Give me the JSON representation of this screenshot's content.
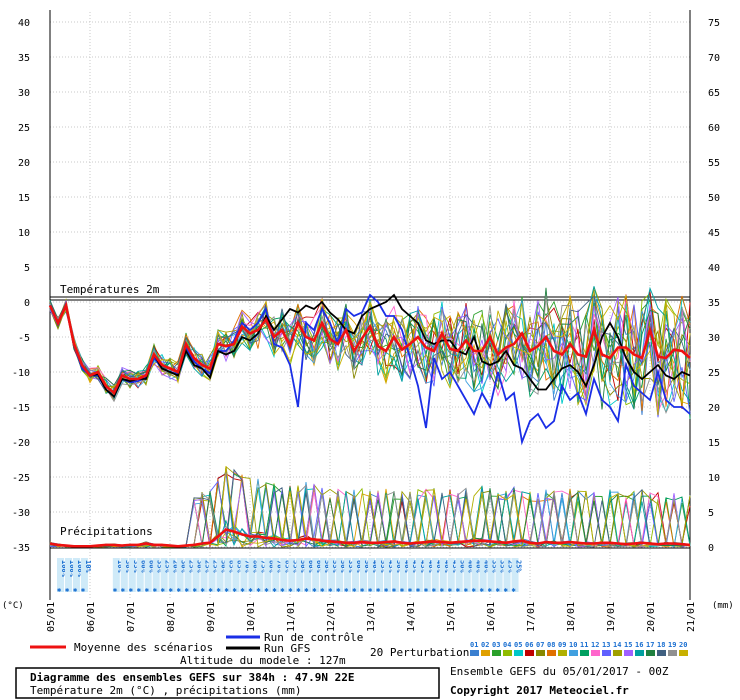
{
  "chart_data": {
    "type": "line",
    "title": "Diagramme des ensembles GEFS sur 384h : 47.9N 22E",
    "subtitle": "Température 2m (°C) , précipitations (mm)",
    "temp_label": "Températures 2m",
    "precip_label": "Précipitations",
    "left_axis_unit": "(°C)",
    "right_axis_unit": "(mm)",
    "left_ticks": [
      "40",
      "35",
      "30",
      "25",
      "20",
      "15",
      "10",
      "5",
      "0",
      "-5",
      "-10",
      "-15",
      "-20",
      "-25",
      "-30",
      "-35"
    ],
    "right_ticks": [
      "75",
      "70",
      "65",
      "60",
      "55",
      "50",
      "45",
      "40",
      "35",
      "30",
      "25",
      "20",
      "15",
      "10",
      "5",
      "0"
    ],
    "ylim_temp": [
      -35,
      40
    ],
    "ylim_precip": [
      0,
      75
    ],
    "date_labels": [
      "05/01",
      "06/01",
      "07/01",
      "08/01",
      "09/01",
      "10/01",
      "11/01",
      "12/01",
      "13/01",
      "14/01",
      "15/01",
      "16/01",
      "17/01",
      "18/01",
      "19/01",
      "20/01",
      "21/01"
    ],
    "x_step_hours": 6,
    "temp_series": [
      {
        "name": "Moyenne des scénarios",
        "color": "#ee1111",
        "values": [
          -0.5,
          -3,
          -0.5,
          -6,
          -9,
          -10.5,
          -10,
          -12,
          -13,
          -10.5,
          -11,
          -11,
          -10.5,
          -7.5,
          -9,
          -9.5,
          -10,
          -6,
          -8,
          -9,
          -9.5,
          -6,
          -6.3,
          -6,
          -3.5,
          -4.5,
          -4,
          -2.5,
          -5,
          -4,
          -6.2,
          -3,
          -5,
          -5.5,
          -3,
          -5.3,
          -6,
          -4,
          -7,
          -5.2,
          -3.5,
          -6.3,
          -7,
          -5,
          -6.8,
          -6,
          -5,
          -6.5,
          -7,
          -4.5,
          -6.7,
          -7,
          -5.5,
          -7,
          -7,
          -5,
          -7.5,
          -6.5,
          -6,
          -4.5,
          -7,
          -6.3,
          -5,
          -7,
          -7.5,
          -6,
          -7.5,
          -7.8,
          -4,
          -7.5,
          -8,
          -6.5,
          -6.5,
          -7.5,
          -8,
          -4,
          -7.8,
          -8,
          -6.8,
          -7,
          -8
        ]
      },
      {
        "name": "Run de contrôle",
        "color": "#1a2ee6",
        "values": [
          -0.5,
          -3.2,
          -0.5,
          -6.2,
          -9.5,
          -10.5,
          -10.5,
          -12.5,
          -13.5,
          -11,
          -11.5,
          -11.3,
          -10.8,
          -8,
          -9.5,
          -10,
          -10.3,
          -6.5,
          -8.5,
          -9.5,
          -10.2,
          -7,
          -7,
          -5.5,
          -3,
          -4,
          -3,
          -1,
          -6,
          -6.5,
          -9,
          -15,
          -3,
          -4,
          -1,
          -3,
          -6,
          -1,
          -2,
          -1.5,
          1,
          0,
          -2,
          -2,
          -4,
          -8,
          -12,
          -18,
          -8,
          -11,
          -10,
          -12,
          -14,
          -16,
          -13,
          -15,
          -10,
          -14,
          -13,
          -20,
          -17,
          -16,
          -18,
          -17,
          -12,
          -14,
          -13,
          -16,
          -11,
          -14,
          -15,
          -17,
          -9,
          -12,
          -13,
          -14,
          -10,
          -14,
          -15,
          -15,
          -16
        ]
      },
      {
        "name": "Run GFS",
        "color": "#000000",
        "values": [
          -0.5,
          -3,
          -0.5,
          -6,
          -9,
          -10.5,
          -10.3,
          -12.5,
          -13.5,
          -11,
          -11.3,
          -11,
          -11,
          -7.5,
          -9.5,
          -10,
          -10.5,
          -7,
          -9,
          -9.5,
          -10.8,
          -7,
          -7.5,
          -7,
          -5,
          -5.5,
          -4.5,
          -2,
          -4,
          -2.5,
          -1,
          -1.5,
          -0.5,
          -1,
          0,
          -1.5,
          -2.5,
          -4,
          -4.5,
          -2,
          -1,
          -0.5,
          0,
          1,
          -1,
          -2,
          -3,
          -5.5,
          -6,
          -5.5,
          -5.5,
          -7,
          -7.5,
          -5,
          -8.5,
          -9,
          -8.5,
          -7,
          -9,
          -9.5,
          -11,
          -12.5,
          -12.5,
          -11,
          -9.5,
          -9,
          -10,
          -12,
          -9,
          -5,
          -3,
          -5,
          -8,
          -10,
          -11,
          -10,
          -9,
          -10.5,
          -11,
          -10,
          -10.5
        ]
      }
    ],
    "precip_mean_mm": [
      0.5,
      0.3,
      0.2,
      0.1,
      0.1,
      0.1,
      0.2,
      0.3,
      0.3,
      0.2,
      0.3,
      0.3,
      0.5,
      0.3,
      0.3,
      0.2,
      0.1,
      0.2,
      0.3,
      0.5,
      0.6,
      1.5,
      2.5,
      2.2,
      1.8,
      1.5,
      1.5,
      1.3,
      1.2,
      1,
      0.9,
      1,
      1.2,
      1.1,
      0.9,
      0.8,
      0.7,
      0.6,
      0.6,
      0.7,
      0.6,
      0.6,
      0.7,
      0.8,
      0.6,
      0.5,
      0.6,
      0.7,
      0.8,
      0.7,
      0.6,
      0.7,
      0.8,
      0.9,
      0.9,
      0.8,
      0.7,
      0.6,
      0.8,
      0.9,
      0.6,
      0.5,
      0.7,
      0.6,
      0.6,
      0.7,
      0.6,
      0.5,
      0.5,
      0.6,
      0.6,
      0.5,
      0.4,
      0.5,
      0.6,
      0.5,
      0.4,
      0.5,
      0.5,
      0.4,
      0.3
    ],
    "altitude_text": "Altitude du modele : 127m",
    "perturbations_label": "20 Perturbations",
    "perturbation_ids": [
      "01",
      "02",
      "03",
      "04",
      "05",
      "06",
      "07",
      "08",
      "09",
      "10",
      "11",
      "12",
      "13",
      "14",
      "15",
      "16",
      "17",
      "18",
      "19",
      "20"
    ],
    "perturbation_colors": [
      "#3a7fd0",
      "#e0a000",
      "#2aa02a",
      "#8fbc00",
      "#00c8c8",
      "#c00000",
      "#888800",
      "#e07000",
      "#b0b000",
      "#40a0e0",
      "#00a060",
      "#ff66cc",
      "#6060ff",
      "#a0a000",
      "#a060ff",
      "#00a0a0",
      "#208040",
      "#406080",
      "#909090",
      "#c8b000"
    ],
    "snow_pct_labels": [
      "100%",
      "100%",
      "100%",
      "10%",
      "10%",
      "30%",
      "35%",
      "60%",
      "60%",
      "35%",
      "25%",
      "20%",
      "30%",
      "25%",
      "30%",
      "25%",
      "25%",
      "50%",
      "65%",
      "65%",
      "70%",
      "80%",
      "75%",
      "60%",
      "70%",
      "65%",
      "55%",
      "50%",
      "60%",
      "60%",
      "50%",
      "55%",
      "50%",
      "35%",
      "60%",
      "50%",
      "40%",
      "55%",
      "45%",
      "50%",
      "40%",
      "45%",
      "45%",
      "40%",
      "40%",
      "40%",
      "45%",
      "50%",
      "40%",
      "40%",
      "40%",
      "35%",
      "35%",
      "25%",
      "25%"
    ],
    "ensemble_info": "Ensemble GEFS du 05/01/2017 - 00Z",
    "copyright": "Copyright 2017 Meteociel.fr"
  },
  "legend": {
    "mean_label": "Moyenne des scénarios",
    "control_label": "Run de contrôle",
    "gfs_label": "Run GFS",
    "mean_color": "#ee1111",
    "control_color": "#1a2ee6",
    "gfs_color": "#000000"
  }
}
